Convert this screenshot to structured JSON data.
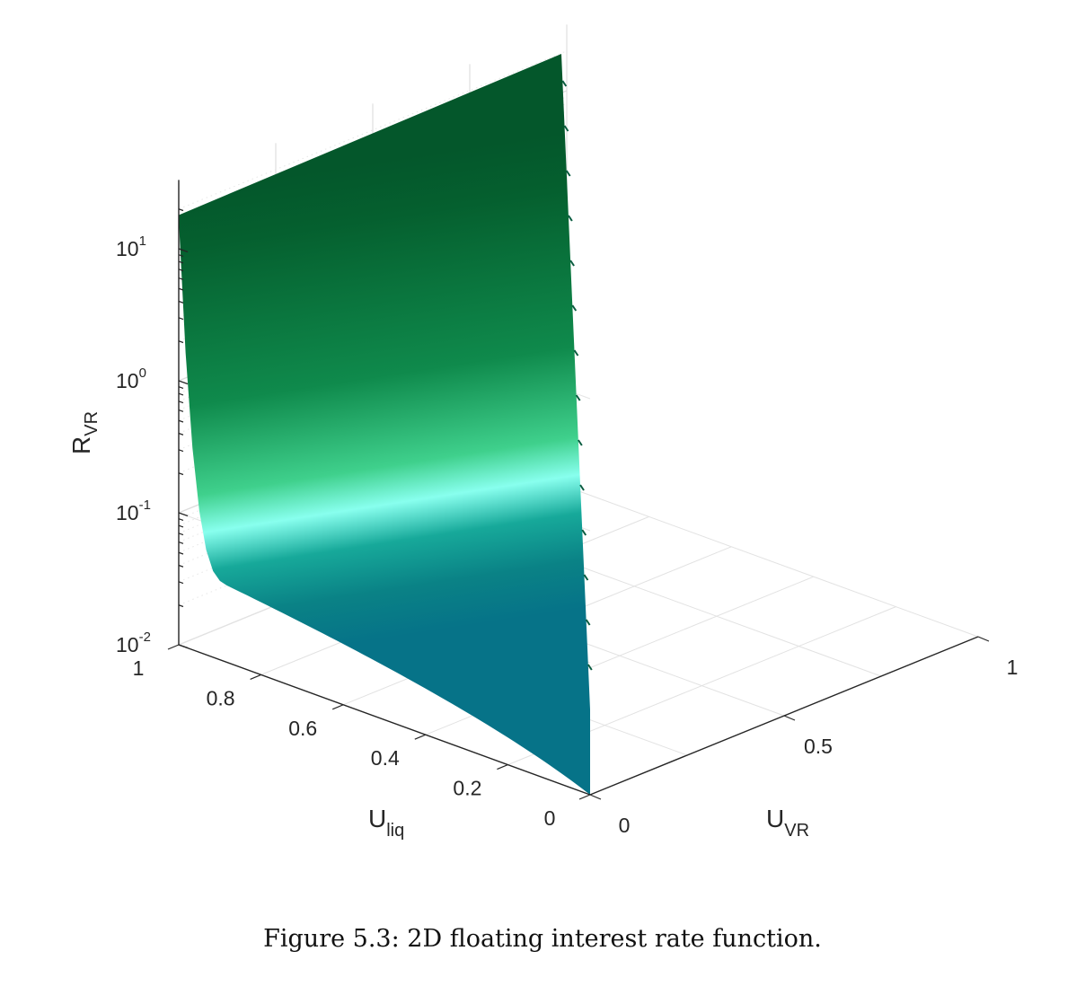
{
  "caption": "Figure 5.3: 2D floating interest rate function.",
  "chart_data": {
    "type": "surface",
    "xlabel": "U_VR",
    "ylabel": "U_liq",
    "zlabel": "R_VR",
    "x_axis": {
      "ticks": [
        "0",
        "0.5",
        "1"
      ],
      "range": [
        0,
        1
      ]
    },
    "y_axis": {
      "ticks": [
        "0",
        "0.2",
        "0.4",
        "0.6",
        "0.8",
        "1"
      ],
      "range": [
        0,
        1
      ]
    },
    "z_axis": {
      "scale": "log",
      "ticks": [
        "10^-2",
        "10^-1",
        "10^0",
        "10^1"
      ],
      "range": [
        0.01,
        20
      ]
    },
    "grid": true,
    "colormap": [
      "#067388",
      "#0c7f7a",
      "#7affe6",
      "#0f8a4c",
      "#04572b"
    ],
    "surface": {
      "description_values": {
        "U_liq": [
          0,
          0.1,
          0.2,
          0.3,
          0.4,
          0.5,
          0.6,
          0.7,
          0.8,
          0.85,
          0.9,
          0.95,
          1.0
        ],
        "R_VR": [
          0.01,
          0.012,
          0.014,
          0.016,
          0.019,
          0.022,
          0.026,
          0.03,
          0.037,
          0.045,
          0.07,
          0.3,
          18
        ]
      }
    }
  }
}
